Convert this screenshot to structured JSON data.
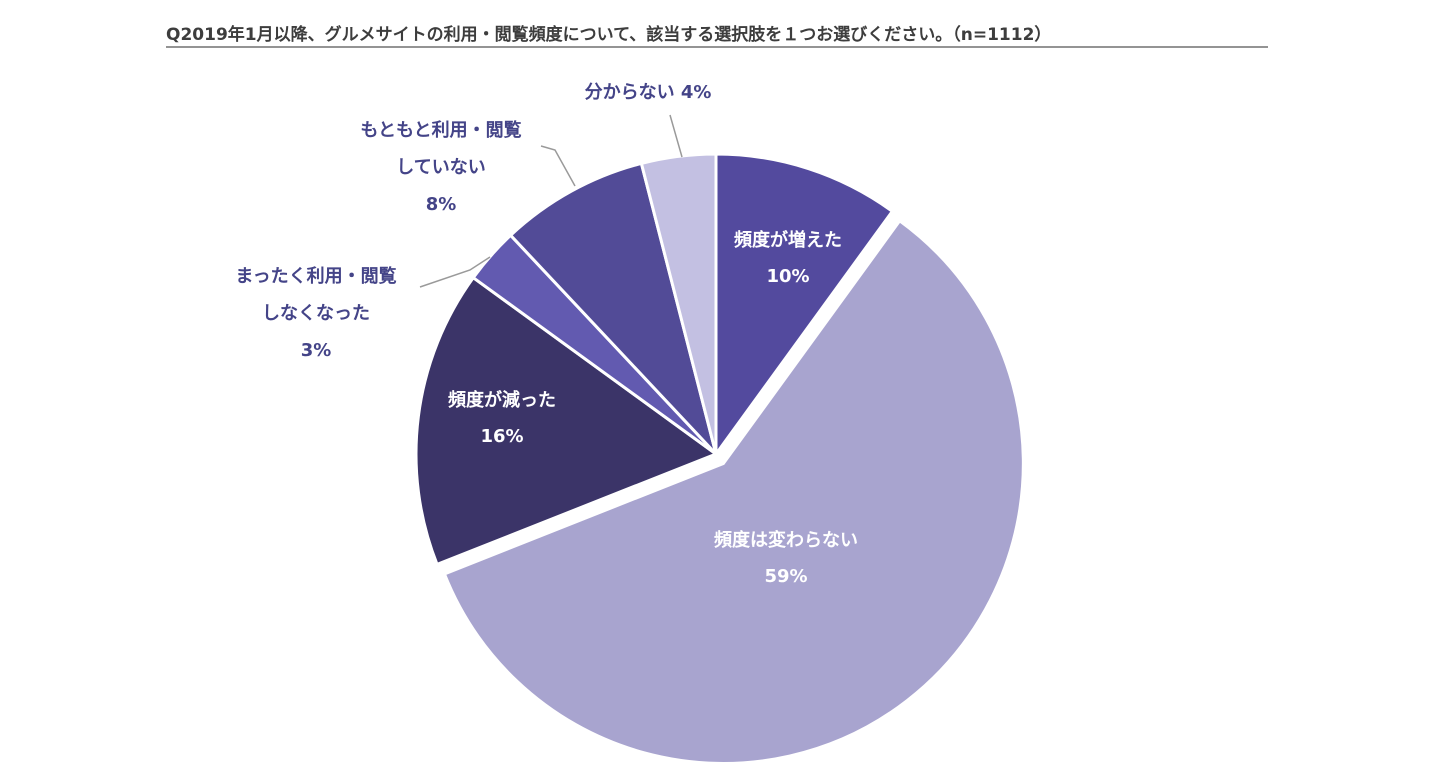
{
  "chart_data": {
    "type": "pie",
    "title": "Q2019年1月以降、グルメサイトの利用・閲覧頻度について、該当する選択肢を１つお選びください。（n=1112）",
    "start_angle_deg": 0,
    "direction": "clockwise",
    "slices": [
      {
        "label_lines": [
          "頻度が増えた"
        ],
        "value": 10,
        "value_label": "10%",
        "color": "#534a9e",
        "label_position": "inside"
      },
      {
        "label_lines": [
          "頻度は変わらない"
        ],
        "value": 59,
        "value_label": "59%",
        "color": "#a8a4cf",
        "label_position": "inside",
        "exploded": true
      },
      {
        "label_lines": [
          "頻度が減った"
        ],
        "value": 16,
        "value_label": "16%",
        "color": "#3b3468",
        "label_position": "inside"
      },
      {
        "label_lines": [
          "まったく利用・閲覧",
          "しなくなった"
        ],
        "value": 3,
        "value_label": "3%",
        "color": "#625ab0",
        "label_position": "outside"
      },
      {
        "label_lines": [
          "もともと利用・閲覧",
          "していない"
        ],
        "value": 8,
        "value_label": "8%",
        "color": "#524b97",
        "label_position": "outside"
      },
      {
        "label_lines": [
          "分からない"
        ],
        "value": 4,
        "value_label": "4%",
        "color": "#c3c0e2",
        "label_position": "outside",
        "value_inline": true
      }
    ]
  }
}
